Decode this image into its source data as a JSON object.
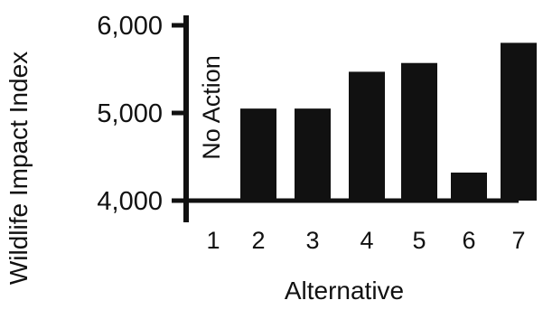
{
  "chart_data": {
    "type": "bar",
    "title": "",
    "xlabel": "Alternative",
    "ylabel": "Wildlife Impact Index",
    "categories": [
      "1",
      "2",
      "3",
      "4",
      "5",
      "6",
      "7"
    ],
    "values": [
      null,
      5050,
      5050,
      5470,
      5570,
      4320,
      5800
    ],
    "ylim": [
      4000,
      6000
    ],
    "yticks": [
      4000,
      5000,
      6000
    ],
    "ytick_labels": [
      "4,000",
      "5,000",
      "6,000"
    ],
    "annotations": [
      {
        "category": "1",
        "text": "No Action"
      }
    ],
    "legend": "none",
    "grid": false,
    "colors": {
      "bar": "#111111",
      "axis": "#111111",
      "background": "#ffffff"
    }
  }
}
